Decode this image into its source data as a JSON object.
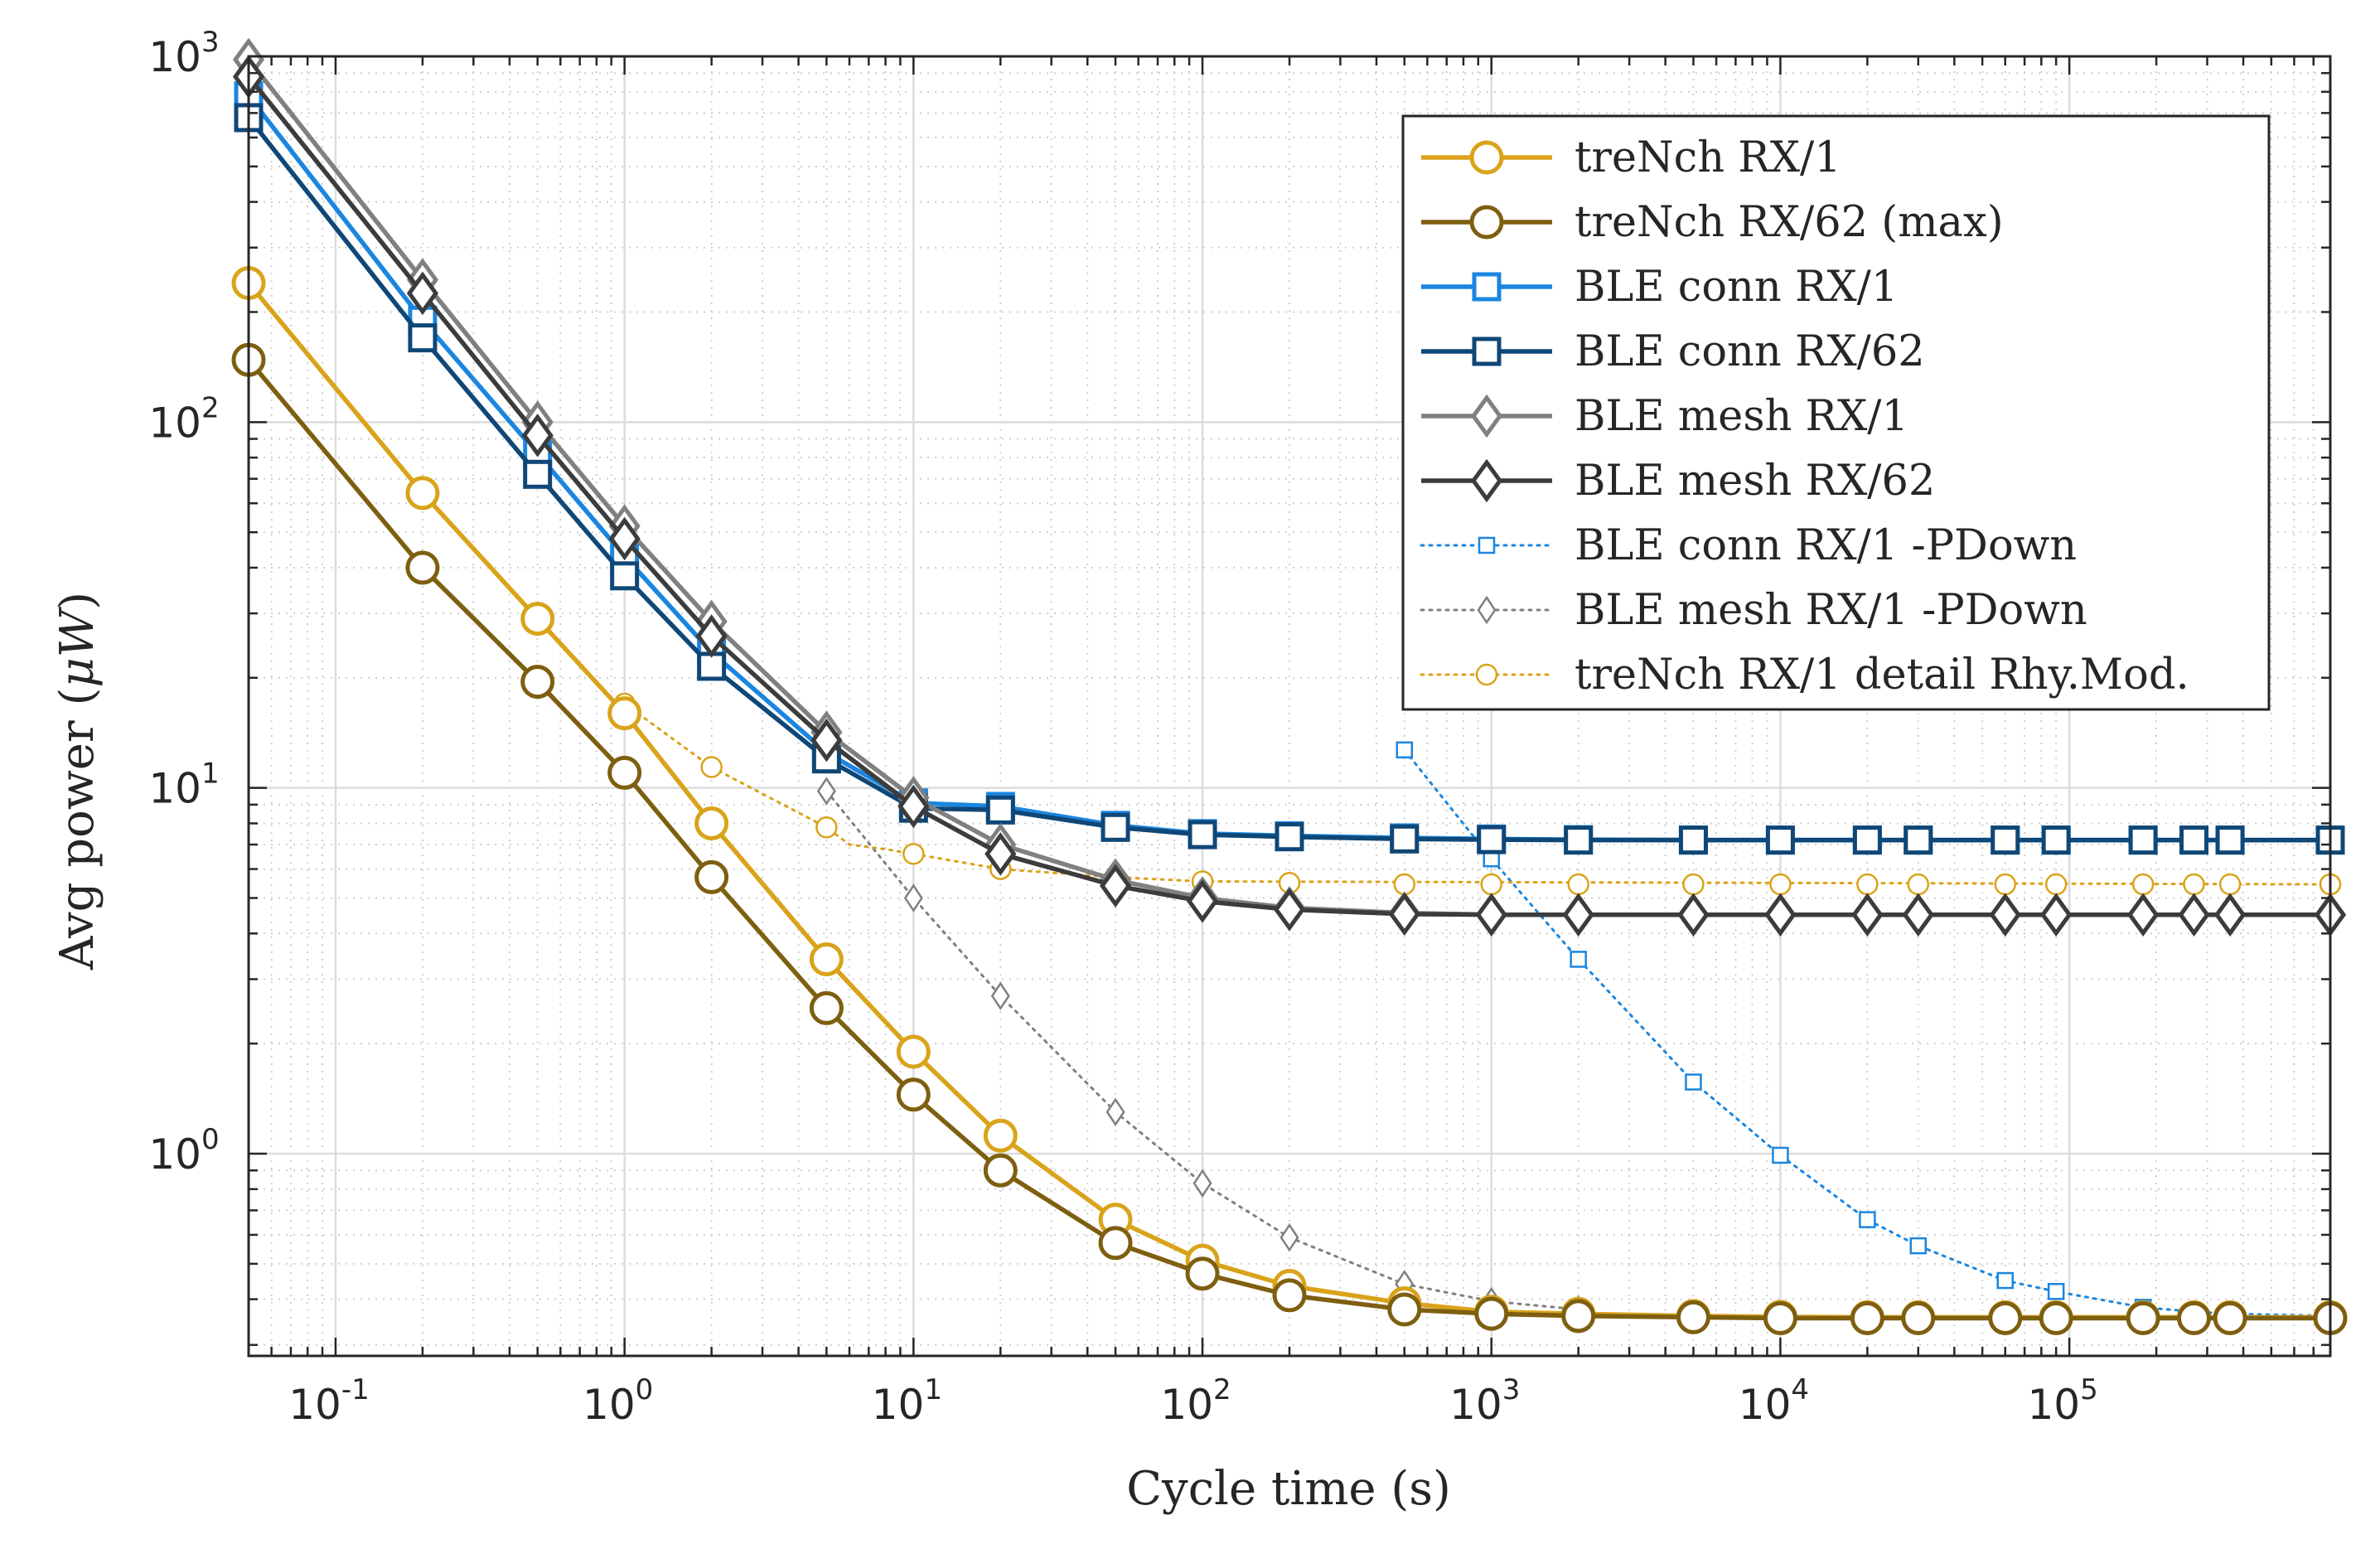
{
  "chart_data": {
    "type": "line",
    "title": "",
    "xlabel": "Cycle time (s)",
    "ylabel_prefix": "Avg power (",
    "ylabel_mu": "μ",
    "ylabel_unit": "W",
    "ylabel_suffix": ")",
    "xscale": "log",
    "yscale": "log",
    "xlim": [
      0.05,
      800000
    ],
    "ylim": [
      0.28,
      1000
    ],
    "grid": true,
    "minor_grid": true,
    "legend_position": "top-right",
    "x_ticks": [
      {
        "base": "10",
        "exp": "-1",
        "value": 0.1
      },
      {
        "base": "10",
        "exp": "0",
        "value": 1
      },
      {
        "base": "10",
        "exp": "1",
        "value": 10
      },
      {
        "base": "10",
        "exp": "2",
        "value": 100
      },
      {
        "base": "10",
        "exp": "3",
        "value": 1000
      },
      {
        "base": "10",
        "exp": "4",
        "value": 10000
      },
      {
        "base": "10",
        "exp": "5",
        "value": 100000
      }
    ],
    "y_ticks": [
      {
        "base": "10",
        "exp": "0",
        "value": 1
      },
      {
        "base": "10",
        "exp": "1",
        "value": 10
      },
      {
        "base": "10",
        "exp": "2",
        "value": 100
      },
      {
        "base": "10",
        "exp": "3",
        "value": 1000
      }
    ],
    "x": [
      0.05,
      0.2,
      0.5,
      1,
      2,
      5,
      10,
      20,
      50,
      100,
      200,
      500,
      1000,
      2000,
      5000,
      10000,
      20000,
      30000,
      60000,
      90000,
      180000,
      270000,
      360000,
      800000
    ],
    "series": [
      {
        "name": "treNch RX/1",
        "color": "#d9a31a",
        "line": "solid",
        "marker": "circle",
        "marker_fill": "none",
        "x": [
          0.05,
          0.2,
          0.5,
          1,
          2,
          5,
          10,
          20,
          50,
          100,
          200,
          500,
          1000,
          2000,
          5000,
          10000,
          20000,
          30000,
          60000,
          90000,
          180000,
          270000,
          360000,
          800000
        ],
        "values": [
          240,
          64,
          29,
          16,
          8.0,
          3.4,
          1.9,
          1.12,
          0.66,
          0.51,
          0.435,
          0.39,
          0.37,
          0.365,
          0.36,
          0.358,
          0.357,
          0.357,
          0.357,
          0.357,
          0.357,
          0.357,
          0.357,
          0.357
        ]
      },
      {
        "name": "treNch RX/62 (max)",
        "color": "#7e5f10",
        "line": "solid",
        "marker": "circle",
        "marker_fill": "none",
        "x": [
          0.05,
          0.2,
          0.5,
          1,
          2,
          5,
          10,
          20,
          50,
          100,
          200,
          500,
          1000,
          2000,
          5000,
          10000,
          20000,
          30000,
          60000,
          90000,
          180000,
          270000,
          360000,
          800000
        ],
        "values": [
          148,
          40,
          19.5,
          11,
          5.7,
          2.5,
          1.45,
          0.9,
          0.57,
          0.47,
          0.41,
          0.375,
          0.365,
          0.36,
          0.357,
          0.355,
          0.355,
          0.355,
          0.355,
          0.355,
          0.355,
          0.355,
          0.355,
          0.355
        ]
      },
      {
        "name": "BLE conn RX/1",
        "color": "#1a86e0",
        "line": "solid",
        "marker": "square",
        "marker_fill": "none",
        "x": [
          0.05,
          0.2,
          0.5,
          1,
          2,
          5,
          10,
          20,
          50,
          100,
          200,
          500,
          1000,
          2000,
          5000,
          10000,
          20000,
          30000,
          60000,
          90000,
          180000,
          270000,
          360000,
          800000
        ],
        "values": [
          780,
          190,
          82,
          43,
          23.5,
          12.5,
          9.1,
          8.9,
          7.9,
          7.5,
          7.4,
          7.3,
          7.25,
          7.22,
          7.2,
          7.2,
          7.2,
          7.2,
          7.2,
          7.2,
          7.2,
          7.2,
          7.2,
          7.2
        ]
      },
      {
        "name": "BLE conn RX/62",
        "color": "#0f4777",
        "line": "solid",
        "marker": "square",
        "marker_fill": "none",
        "x": [
          0.05,
          0.2,
          0.5,
          1,
          2,
          5,
          10,
          20,
          50,
          100,
          200,
          500,
          1000,
          2000,
          5000,
          10000,
          20000,
          30000,
          60000,
          90000,
          180000,
          270000,
          360000,
          800000
        ],
        "values": [
          680,
          170,
          72,
          38,
          21.5,
          12,
          8.8,
          8.7,
          7.8,
          7.45,
          7.35,
          7.25,
          7.22,
          7.2,
          7.2,
          7.2,
          7.2,
          7.2,
          7.2,
          7.2,
          7.2,
          7.2,
          7.2,
          7.2
        ]
      },
      {
        "name": "BLE mesh RX/1",
        "color": "#808080",
        "line": "solid",
        "marker": "diamond",
        "marker_fill": "none",
        "x": [
          0.05,
          0.2,
          0.5,
          1,
          2,
          5,
          10,
          20,
          50,
          100,
          200,
          500,
          1000,
          2000,
          5000,
          10000,
          20000,
          30000,
          60000,
          90000,
          180000,
          270000,
          360000,
          800000
        ],
        "values": [
          980,
          245,
          100,
          52,
          28.5,
          14.2,
          9.4,
          7.0,
          5.6,
          5.0,
          4.7,
          4.55,
          4.5,
          4.5,
          4.5,
          4.5,
          4.5,
          4.5,
          4.5,
          4.5,
          4.5,
          4.5,
          4.5,
          4.5
        ]
      },
      {
        "name": "BLE mesh RX/62",
        "color": "#3c3c3c",
        "line": "solid",
        "marker": "diamond",
        "marker_fill": "none",
        "x": [
          0.05,
          0.2,
          0.5,
          1,
          2,
          5,
          10,
          20,
          50,
          100,
          200,
          500,
          1000,
          2000,
          5000,
          10000,
          20000,
          30000,
          60000,
          90000,
          180000,
          270000,
          360000,
          800000
        ],
        "values": [
          880,
          225,
          92,
          48,
          26,
          13.5,
          8.9,
          6.6,
          5.4,
          4.9,
          4.65,
          4.52,
          4.5,
          4.5,
          4.5,
          4.5,
          4.5,
          4.5,
          4.5,
          4.5,
          4.5,
          4.5,
          4.5,
          4.5
        ]
      },
      {
        "name": "BLE conn RX/1 -PDown",
        "color": "#1a86e0",
        "line": "dotted",
        "marker": "square",
        "marker_fill": "none",
        "small": true,
        "x": [
          500,
          1000,
          2000,
          5000,
          10000,
          20000,
          30000,
          60000,
          90000,
          180000,
          270000,
          360000,
          800000
        ],
        "values": [
          12.7,
          6.4,
          3.4,
          1.57,
          0.99,
          0.66,
          0.56,
          0.45,
          0.42,
          0.38,
          0.37,
          0.365,
          0.36
        ]
      },
      {
        "name": "BLE mesh RX/1 -PDown",
        "color": "#808080",
        "line": "dotted",
        "marker": "diamond",
        "marker_fill": "none",
        "small": true,
        "x": [
          5,
          10,
          20,
          50,
          100,
          200,
          500,
          1000,
          2000
        ],
        "values": [
          9.8,
          5.0,
          2.7,
          1.3,
          0.83,
          0.59,
          0.44,
          0.395,
          0.375
        ]
      },
      {
        "name": "treNch RX/1 detail Rhy.Mod.",
        "color": "#d9a31a",
        "line": "dotted",
        "marker": "circle",
        "marker_fill": "none",
        "small": true,
        "x": [
          1,
          2,
          5,
          10,
          20,
          50,
          100,
          200,
          500,
          1000,
          2000,
          5000,
          10000,
          20000,
          30000,
          60000,
          90000,
          180000,
          270000,
          360000,
          800000
        ],
        "values": [
          17,
          11.4,
          7.8,
          6.6,
          6.0,
          5.7,
          5.55,
          5.5,
          5.45,
          5.45,
          5.45,
          5.45,
          5.45,
          5.45,
          5.45,
          5.45,
          5.45,
          5.45,
          5.45,
          5.45,
          5.45
        ],
        "curve_x": [
          1,
          2,
          5,
          6,
          8,
          10,
          20,
          50,
          100,
          800000
        ],
        "curve_y": [
          17,
          11.4,
          7.8,
          7.0,
          6.8,
          6.6,
          6.0,
          5.7,
          5.55,
          5.45
        ]
      }
    ]
  }
}
